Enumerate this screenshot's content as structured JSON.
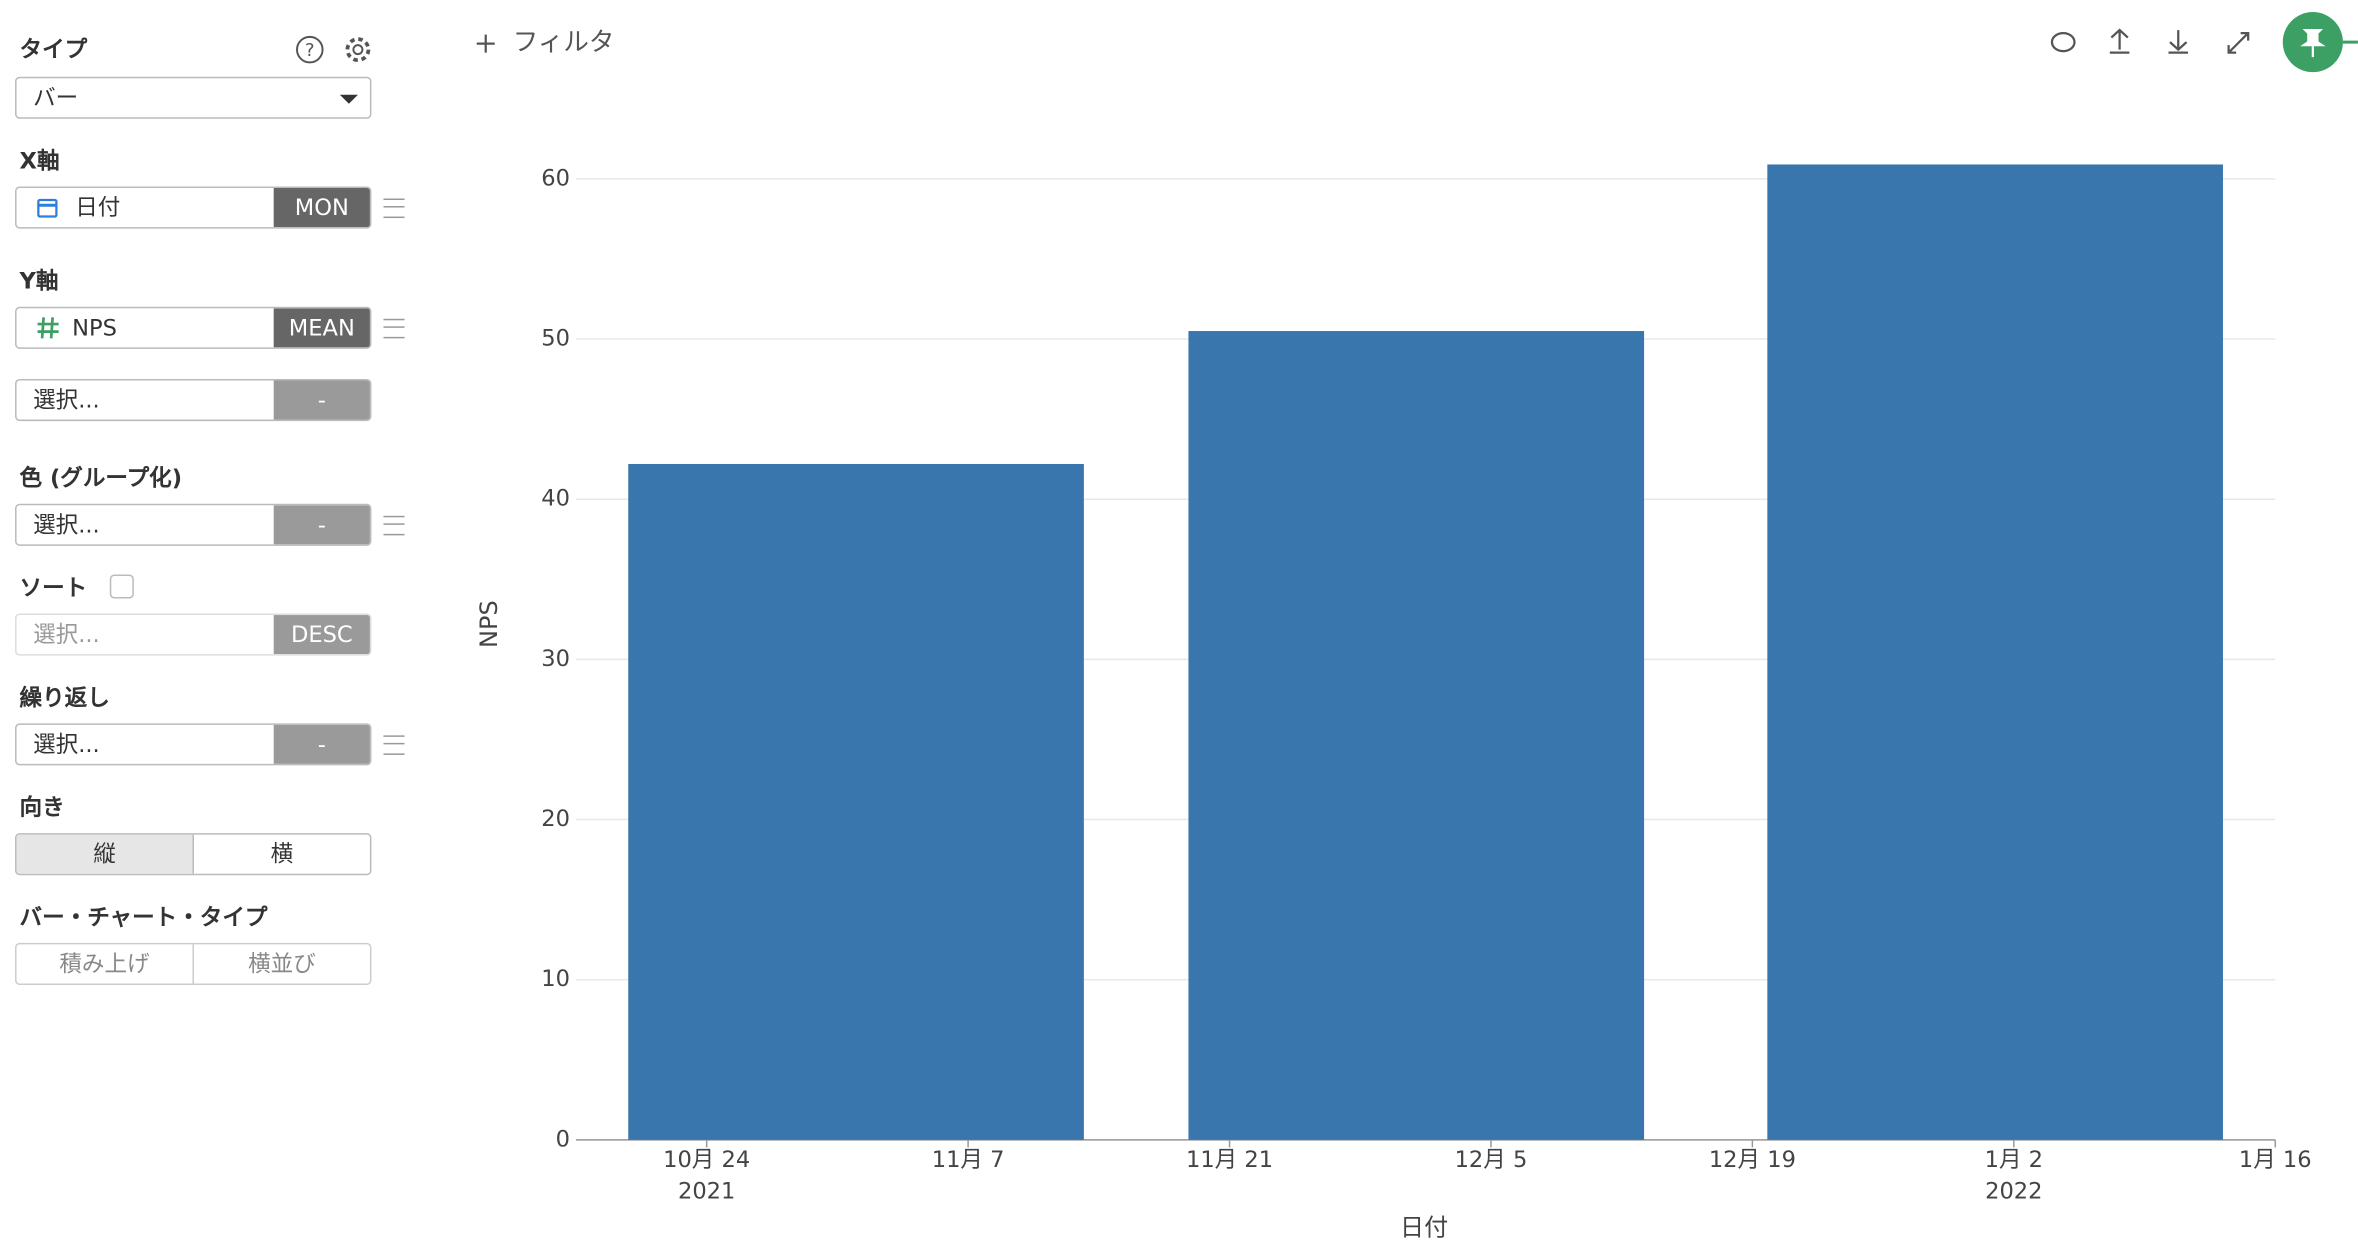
{
  "toolbar": {
    "filter": "フィルタ"
  },
  "sidebar": {
    "type_label": "タイプ",
    "help_icon": "?",
    "type_value": "バー",
    "x_label": "X軸",
    "x_field": "日付",
    "x_agg": "MON",
    "y_label": "Y軸",
    "y_field": "NPS",
    "y_agg": "MEAN",
    "y2_placeholder": "選択...",
    "y2_agg": "-",
    "color_label": "色 (グループ化)",
    "color_placeholder": "選択...",
    "color_agg": "-",
    "sort_label": "ソート",
    "sort_placeholder": "選択...",
    "sort_order": "DESC",
    "repeat_label": "繰り返し",
    "repeat_placeholder": "選択...",
    "repeat_agg": "-",
    "orientation_label": "向き",
    "orientation_options": [
      "縦",
      "横"
    ],
    "bar_type_label": "バー・チャート・タイプ",
    "bar_type_options": [
      "積み上げ",
      "横並び"
    ]
  },
  "chart_data": {
    "type": "bar",
    "x_label": "日付",
    "y_label": "NPS",
    "x": [
      "2021-11-01",
      "2021-12-01",
      "2022-01-01"
    ],
    "values": [
      42.2,
      50.5,
      60.9
    ],
    "color": "#3a76ae",
    "xlim": [
      "2021-10-17",
      "2022-01-16"
    ],
    "xticks": [
      {
        "value": "2021-10-24",
        "label": "10月 24\n2021"
      },
      {
        "value": "2021-11-07",
        "label": "11月 7"
      },
      {
        "value": "2021-11-21",
        "label": "11月 21"
      },
      {
        "value": "2021-12-05",
        "label": "12月 5"
      },
      {
        "value": "2021-12-19",
        "label": "12月 19"
      },
      {
        "value": "2022-01-02",
        "label": "1月 2\n2022"
      },
      {
        "value": "2022-01-16",
        "label": "1月 16"
      }
    ],
    "ylim": [
      0,
      63
    ],
    "yticks": [
      0,
      10,
      20,
      30,
      40,
      50,
      60
    ],
    "grid": true
  }
}
